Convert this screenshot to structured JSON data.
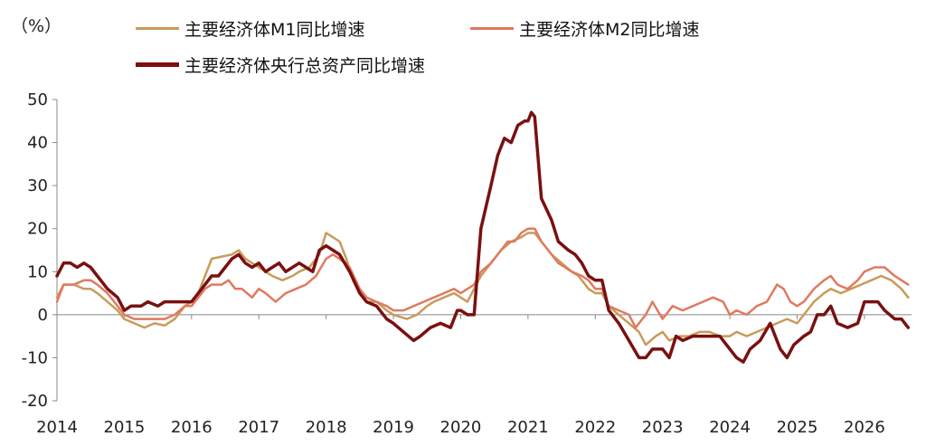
{
  "chart_data": {
    "type": "line",
    "unit_label": "（%）",
    "ylim": [
      -20,
      50
    ],
    "yticks": [
      "50",
      "40",
      "30",
      "20",
      "10",
      "0",
      "-10",
      "-20"
    ],
    "xticks": [
      "2014",
      "2015",
      "2016",
      "2017",
      "2018",
      "2019",
      "2020",
      "2021",
      "2022",
      "2023",
      "2024",
      "2025",
      "2026"
    ],
    "xlim": [
      2014.0,
      2026.7
    ],
    "grid": false,
    "legend_position": "top",
    "series": [
      {
        "name": "主要经济体M1同比增速",
        "color": "#C89B5A",
        "stroke_width": 2.5,
        "points": [
          [
            2014.0,
            4
          ],
          [
            2014.1,
            7
          ],
          [
            2014.25,
            7
          ],
          [
            2014.4,
            6
          ],
          [
            2014.5,
            6
          ],
          [
            2014.6,
            5
          ],
          [
            2014.75,
            3
          ],
          [
            2014.9,
            1
          ],
          [
            2015.0,
            -1
          ],
          [
            2015.15,
            -2
          ],
          [
            2015.3,
            -3
          ],
          [
            2015.45,
            -2
          ],
          [
            2015.6,
            -2.5
          ],
          [
            2015.75,
            -1
          ],
          [
            2015.9,
            2
          ],
          [
            2016.0,
            3
          ],
          [
            2016.1,
            5
          ],
          [
            2016.2,
            9
          ],
          [
            2016.3,
            13
          ],
          [
            2016.45,
            13.5
          ],
          [
            2016.6,
            14
          ],
          [
            2016.7,
            15
          ],
          [
            2016.8,
            13
          ],
          [
            2016.9,
            12
          ],
          [
            2017.0,
            11
          ],
          [
            2017.1,
            10
          ],
          [
            2017.2,
            9
          ],
          [
            2017.35,
            8
          ],
          [
            2017.5,
            9
          ],
          [
            2017.6,
            10
          ],
          [
            2017.75,
            11
          ],
          [
            2017.9,
            14
          ],
          [
            2018.0,
            19
          ],
          [
            2018.1,
            18
          ],
          [
            2018.2,
            17
          ],
          [
            2018.3,
            13
          ],
          [
            2018.4,
            8
          ],
          [
            2018.5,
            5
          ],
          [
            2018.6,
            3
          ],
          [
            2018.75,
            3
          ],
          [
            2018.9,
            1
          ],
          [
            2019.0,
            0
          ],
          [
            2019.2,
            -1
          ],
          [
            2019.35,
            0
          ],
          [
            2019.5,
            2
          ],
          [
            2019.6,
            3
          ],
          [
            2019.75,
            4
          ],
          [
            2019.9,
            5
          ],
          [
            2020.0,
            4
          ],
          [
            2020.1,
            3
          ],
          [
            2020.2,
            6
          ],
          [
            2020.3,
            9
          ],
          [
            2020.45,
            12
          ],
          [
            2020.6,
            15
          ],
          [
            2020.75,
            17
          ],
          [
            2020.9,
            18
          ],
          [
            2021.0,
            19
          ],
          [
            2021.1,
            19
          ],
          [
            2021.2,
            17
          ],
          [
            2021.35,
            14
          ],
          [
            2021.5,
            12
          ],
          [
            2021.65,
            10
          ],
          [
            2021.75,
            9
          ],
          [
            2021.9,
            6
          ],
          [
            2022.0,
            5
          ],
          [
            2022.1,
            5
          ],
          [
            2022.2,
            2
          ],
          [
            2022.35,
            0
          ],
          [
            2022.5,
            -2
          ],
          [
            2022.65,
            -4
          ],
          [
            2022.75,
            -7
          ],
          [
            2022.9,
            -5
          ],
          [
            2023.0,
            -4
          ],
          [
            2023.1,
            -6
          ],
          [
            2023.25,
            -5
          ],
          [
            2023.4,
            -5
          ],
          [
            2023.55,
            -4
          ],
          [
            2023.7,
            -4
          ],
          [
            2023.85,
            -5
          ],
          [
            2024.0,
            -5
          ],
          [
            2024.1,
            -4
          ],
          [
            2024.25,
            -5
          ],
          [
            2024.4,
            -4
          ],
          [
            2024.55,
            -3
          ],
          [
            2024.7,
            -2
          ],
          [
            2024.85,
            -1
          ],
          [
            2025.0,
            -2
          ],
          [
            2025.1,
            0
          ],
          [
            2025.25,
            3
          ],
          [
            2025.4,
            5
          ],
          [
            2025.5,
            6
          ],
          [
            2025.65,
            5
          ],
          [
            2025.8,
            6
          ],
          [
            2025.95,
            7
          ],
          [
            2026.1,
            8
          ],
          [
            2026.25,
            9
          ],
          [
            2026.4,
            8
          ],
          [
            2026.55,
            6
          ],
          [
            2026.65,
            4
          ]
        ]
      },
      {
        "name": "主要经济体M2同比增速",
        "color": "#E07A5F",
        "stroke_width": 2.5,
        "points": [
          [
            2014.0,
            3
          ],
          [
            2014.1,
            7
          ],
          [
            2014.25,
            7
          ],
          [
            2014.4,
            8
          ],
          [
            2014.5,
            8
          ],
          [
            2014.6,
            7
          ],
          [
            2014.75,
            5
          ],
          [
            2014.9,
            2
          ],
          [
            2015.0,
            0
          ],
          [
            2015.15,
            -1
          ],
          [
            2015.3,
            -1
          ],
          [
            2015.45,
            -1
          ],
          [
            2015.6,
            -1
          ],
          [
            2015.75,
            0
          ],
          [
            2015.9,
            2
          ],
          [
            2016.0,
            2
          ],
          [
            2016.1,
            4
          ],
          [
            2016.2,
            6
          ],
          [
            2016.3,
            7
          ],
          [
            2016.45,
            7
          ],
          [
            2016.55,
            8
          ],
          [
            2016.65,
            6
          ],
          [
            2016.75,
            6
          ],
          [
            2016.9,
            4
          ],
          [
            2017.0,
            6
          ],
          [
            2017.1,
            5
          ],
          [
            2017.25,
            3
          ],
          [
            2017.4,
            5
          ],
          [
            2017.55,
            6
          ],
          [
            2017.7,
            7
          ],
          [
            2017.85,
            9
          ],
          [
            2018.0,
            13
          ],
          [
            2018.1,
            14
          ],
          [
            2018.2,
            13
          ],
          [
            2018.35,
            11
          ],
          [
            2018.5,
            6
          ],
          [
            2018.6,
            4
          ],
          [
            2018.75,
            3
          ],
          [
            2018.9,
            2
          ],
          [
            2019.0,
            1
          ],
          [
            2019.15,
            1
          ],
          [
            2019.3,
            2
          ],
          [
            2019.45,
            3
          ],
          [
            2019.6,
            4
          ],
          [
            2019.75,
            5
          ],
          [
            2019.9,
            6
          ],
          [
            2020.0,
            5
          ],
          [
            2020.1,
            6
          ],
          [
            2020.2,
            7
          ],
          [
            2020.3,
            10
          ],
          [
            2020.45,
            12
          ],
          [
            2020.6,
            15
          ],
          [
            2020.7,
            17
          ],
          [
            2020.8,
            17
          ],
          [
            2020.9,
            19
          ],
          [
            2021.0,
            20
          ],
          [
            2021.1,
            20
          ],
          [
            2021.2,
            17
          ],
          [
            2021.3,
            15
          ],
          [
            2021.45,
            12
          ],
          [
            2021.55,
            11
          ],
          [
            2021.65,
            10
          ],
          [
            2021.8,
            9
          ],
          [
            2021.9,
            8
          ],
          [
            2022.0,
            6
          ],
          [
            2022.1,
            6
          ],
          [
            2022.2,
            2
          ],
          [
            2022.35,
            1
          ],
          [
            2022.5,
            0
          ],
          [
            2022.6,
            -3
          ],
          [
            2022.75,
            0
          ],
          [
            2022.85,
            3
          ],
          [
            2023.0,
            -1
          ],
          [
            2023.15,
            2
          ],
          [
            2023.3,
            1
          ],
          [
            2023.45,
            2
          ],
          [
            2023.6,
            3
          ],
          [
            2023.75,
            4
          ],
          [
            2023.9,
            3
          ],
          [
            2024.0,
            0
          ],
          [
            2024.1,
            1
          ],
          [
            2024.25,
            0
          ],
          [
            2024.4,
            2
          ],
          [
            2024.55,
            3
          ],
          [
            2024.7,
            7
          ],
          [
            2024.8,
            6
          ],
          [
            2024.9,
            3
          ],
          [
            2025.0,
            2
          ],
          [
            2025.1,
            3
          ],
          [
            2025.25,
            6
          ],
          [
            2025.4,
            8
          ],
          [
            2025.5,
            9
          ],
          [
            2025.6,
            7
          ],
          [
            2025.75,
            6
          ],
          [
            2025.9,
            8
          ],
          [
            2026.0,
            10
          ],
          [
            2026.15,
            11
          ],
          [
            2026.3,
            11
          ],
          [
            2026.45,
            9
          ],
          [
            2026.55,
            8
          ],
          [
            2026.65,
            7
          ]
        ]
      },
      {
        "name": "主要经济体央行总资产同比增速",
        "color": "#7A1010",
        "stroke_width": 3.5,
        "points": [
          [
            2014.0,
            9
          ],
          [
            2014.1,
            12
          ],
          [
            2014.2,
            12
          ],
          [
            2014.3,
            11
          ],
          [
            2014.4,
            12
          ],
          [
            2014.5,
            11
          ],
          [
            2014.6,
            9
          ],
          [
            2014.75,
            6
          ],
          [
            2014.9,
            4
          ],
          [
            2015.0,
            1
          ],
          [
            2015.1,
            2
          ],
          [
            2015.25,
            2
          ],
          [
            2015.35,
            3
          ],
          [
            2015.5,
            2
          ],
          [
            2015.6,
            3
          ],
          [
            2015.75,
            3
          ],
          [
            2015.9,
            3
          ],
          [
            2016.0,
            3
          ],
          [
            2016.1,
            5
          ],
          [
            2016.2,
            7
          ],
          [
            2016.3,
            9
          ],
          [
            2016.4,
            9
          ],
          [
            2016.5,
            11
          ],
          [
            2016.6,
            13
          ],
          [
            2016.7,
            14
          ],
          [
            2016.8,
            12
          ],
          [
            2016.9,
            11
          ],
          [
            2017.0,
            12
          ],
          [
            2017.1,
            10
          ],
          [
            2017.2,
            11
          ],
          [
            2017.3,
            12
          ],
          [
            2017.4,
            10
          ],
          [
            2017.5,
            11
          ],
          [
            2017.6,
            12
          ],
          [
            2017.7,
            11
          ],
          [
            2017.8,
            10
          ],
          [
            2017.9,
            15
          ],
          [
            2018.0,
            16
          ],
          [
            2018.1,
            15
          ],
          [
            2018.2,
            14
          ],
          [
            2018.35,
            10
          ],
          [
            2018.5,
            5
          ],
          [
            2018.6,
            3
          ],
          [
            2018.75,
            2
          ],
          [
            2018.9,
            -1
          ],
          [
            2019.0,
            -2
          ],
          [
            2019.15,
            -4
          ],
          [
            2019.3,
            -6
          ],
          [
            2019.4,
            -5
          ],
          [
            2019.55,
            -3
          ],
          [
            2019.7,
            -2
          ],
          [
            2019.85,
            -3
          ],
          [
            2019.95,
            1
          ],
          [
            2020.0,
            1
          ],
          [
            2020.1,
            0
          ],
          [
            2020.2,
            0
          ],
          [
            2020.3,
            20
          ],
          [
            2020.45,
            30
          ],
          [
            2020.55,
            37
          ],
          [
            2020.65,
            41
          ],
          [
            2020.75,
            40
          ],
          [
            2020.85,
            44
          ],
          [
            2020.95,
            45
          ],
          [
            2021.0,
            45
          ],
          [
            2021.05,
            47
          ],
          [
            2021.1,
            46
          ],
          [
            2021.2,
            27
          ],
          [
            2021.35,
            22
          ],
          [
            2021.45,
            17
          ],
          [
            2021.6,
            15
          ],
          [
            2021.7,
            14
          ],
          [
            2021.8,
            12
          ],
          [
            2021.9,
            9
          ],
          [
            2022.0,
            8
          ],
          [
            2022.1,
            8
          ],
          [
            2022.2,
            1
          ],
          [
            2022.35,
            -2
          ],
          [
            2022.5,
            -6
          ],
          [
            2022.65,
            -10
          ],
          [
            2022.75,
            -10
          ],
          [
            2022.85,
            -8
          ],
          [
            2023.0,
            -8
          ],
          [
            2023.1,
            -10
          ],
          [
            2023.2,
            -5
          ],
          [
            2023.3,
            -6
          ],
          [
            2023.45,
            -5
          ],
          [
            2023.6,
            -5
          ],
          [
            2023.75,
            -5
          ],
          [
            2023.85,
            -5
          ],
          [
            2024.0,
            -8
          ],
          [
            2024.1,
            -10
          ],
          [
            2024.2,
            -11
          ],
          [
            2024.3,
            -8
          ],
          [
            2024.45,
            -6
          ],
          [
            2024.6,
            -2
          ],
          [
            2024.75,
            -8
          ],
          [
            2024.85,
            -10
          ],
          [
            2024.95,
            -7
          ],
          [
            2025.1,
            -5
          ],
          [
            2025.2,
            -4
          ],
          [
            2025.3,
            0
          ],
          [
            2025.4,
            0
          ],
          [
            2025.5,
            2
          ],
          [
            2025.6,
            -2
          ],
          [
            2025.75,
            -3
          ],
          [
            2025.9,
            -2
          ],
          [
            2026.0,
            3
          ],
          [
            2026.1,
            3
          ],
          [
            2026.2,
            3
          ],
          [
            2026.3,
            1
          ],
          [
            2026.45,
            -1
          ],
          [
            2026.55,
            -1
          ],
          [
            2026.65,
            -3
          ]
        ]
      }
    ]
  }
}
